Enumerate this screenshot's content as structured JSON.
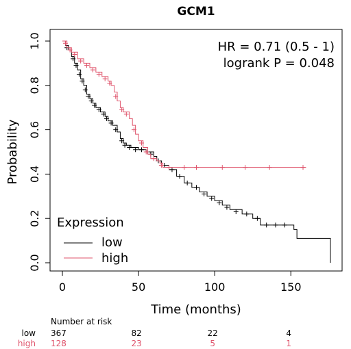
{
  "chart_data": {
    "type": "line",
    "title": "GCM1",
    "xlabel": "Time (months)",
    "ylabel": "Probability",
    "xlim": [
      0,
      180
    ],
    "ylim": [
      0,
      1
    ],
    "x_ticks": [
      "0",
      "50",
      "100",
      "150"
    ],
    "y_ticks": [
      "0.0",
      "0.2",
      "0.4",
      "0.6",
      "0.8",
      "1.0"
    ],
    "annotations": [
      "HR = 0.71 (0.5 - 1)",
      "logrank P = 0.048"
    ],
    "legend": {
      "title": "Expression",
      "position": "bottom-left"
    },
    "grid": false,
    "series": [
      {
        "name": "low",
        "color": "#000000",
        "steps": [
          [
            0,
            1.0
          ],
          [
            2,
            0.98
          ],
          [
            4,
            0.96
          ],
          [
            6,
            0.93
          ],
          [
            8,
            0.9
          ],
          [
            10,
            0.87
          ],
          [
            12,
            0.83
          ],
          [
            14,
            0.8
          ],
          [
            16,
            0.76
          ],
          [
            18,
            0.74
          ],
          [
            20,
            0.72
          ],
          [
            22,
            0.7
          ],
          [
            25,
            0.68
          ],
          [
            28,
            0.66
          ],
          [
            30,
            0.64
          ],
          [
            33,
            0.62
          ],
          [
            36,
            0.59
          ],
          [
            38,
            0.56
          ],
          [
            40,
            0.54
          ],
          [
            42,
            0.53
          ],
          [
            45,
            0.52
          ],
          [
            50,
            0.51
          ],
          [
            55,
            0.5
          ],
          [
            60,
            0.48
          ],
          [
            62,
            0.46
          ],
          [
            65,
            0.44
          ],
          [
            70,
            0.42
          ],
          [
            75,
            0.39
          ],
          [
            80,
            0.36
          ],
          [
            85,
            0.34
          ],
          [
            90,
            0.32
          ],
          [
            95,
            0.3
          ],
          [
            100,
            0.28
          ],
          [
            105,
            0.26
          ],
          [
            110,
            0.24
          ],
          [
            118,
            0.22
          ],
          [
            125,
            0.2
          ],
          [
            130,
            0.17
          ],
          [
            152,
            0.15
          ],
          [
            154,
            0.11
          ],
          [
            175,
            0.11
          ],
          [
            176,
            0.0
          ]
        ],
        "censors": [
          [
            3,
            0.97
          ],
          [
            7,
            0.92
          ],
          [
            9,
            0.89
          ],
          [
            11,
            0.85
          ],
          [
            13,
            0.82
          ],
          [
            15,
            0.78
          ],
          [
            17,
            0.75
          ],
          [
            19,
            0.73
          ],
          [
            21,
            0.71
          ],
          [
            24,
            0.69
          ],
          [
            27,
            0.67
          ],
          [
            29,
            0.65
          ],
          [
            32,
            0.63
          ],
          [
            35,
            0.6
          ],
          [
            39,
            0.55
          ],
          [
            41,
            0.53
          ],
          [
            44,
            0.52
          ],
          [
            48,
            0.51
          ],
          [
            52,
            0.51
          ],
          [
            56,
            0.5
          ],
          [
            58,
            0.49
          ],
          [
            63,
            0.46
          ],
          [
            67,
            0.44
          ],
          [
            72,
            0.42
          ],
          [
            77,
            0.39
          ],
          [
            82,
            0.36
          ],
          [
            88,
            0.34
          ],
          [
            93,
            0.31
          ],
          [
            98,
            0.29
          ],
          [
            103,
            0.27
          ],
          [
            108,
            0.25
          ],
          [
            114,
            0.23
          ],
          [
            121,
            0.22
          ],
          [
            128,
            0.2
          ],
          [
            134,
            0.17
          ],
          [
            140,
            0.17
          ],
          [
            146,
            0.17
          ]
        ]
      },
      {
        "name": "high",
        "color": "#df536b",
        "steps": [
          [
            0,
            1.0
          ],
          [
            3,
            0.97
          ],
          [
            6,
            0.95
          ],
          [
            10,
            0.92
          ],
          [
            14,
            0.9
          ],
          [
            18,
            0.88
          ],
          [
            22,
            0.86
          ],
          [
            26,
            0.84
          ],
          [
            30,
            0.82
          ],
          [
            32,
            0.8
          ],
          [
            34,
            0.77
          ],
          [
            36,
            0.73
          ],
          [
            38,
            0.7
          ],
          [
            40,
            0.68
          ],
          [
            44,
            0.65
          ],
          [
            46,
            0.62
          ],
          [
            48,
            0.58
          ],
          [
            50,
            0.55
          ],
          [
            53,
            0.52
          ],
          [
            56,
            0.49
          ],
          [
            58,
            0.47
          ],
          [
            62,
            0.46
          ],
          [
            64,
            0.45
          ],
          [
            66,
            0.43
          ],
          [
            160,
            0.43
          ]
        ],
        "censors": [
          [
            2,
            0.99
          ],
          [
            5,
            0.96
          ],
          [
            8,
            0.94
          ],
          [
            12,
            0.91
          ],
          [
            16,
            0.89
          ],
          [
            20,
            0.87
          ],
          [
            24,
            0.85
          ],
          [
            28,
            0.83
          ],
          [
            31,
            0.81
          ],
          [
            35,
            0.75
          ],
          [
            39,
            0.69
          ],
          [
            42,
            0.67
          ],
          [
            47,
            0.6
          ],
          [
            52,
            0.54
          ],
          [
            55,
            0.5
          ],
          [
            60,
            0.47
          ],
          [
            65,
            0.44
          ],
          [
            70,
            0.43
          ],
          [
            80,
            0.43
          ],
          [
            88,
            0.43
          ],
          [
            105,
            0.43
          ],
          [
            120,
            0.43
          ],
          [
            136,
            0.43
          ],
          [
            158,
            0.43
          ]
        ]
      }
    ],
    "risk_table": {
      "title": "Number at risk",
      "times": [
        0,
        50,
        100,
        150
      ],
      "rows": [
        {
          "label": "low",
          "color": "#000000",
          "values": [
            "367",
            "82",
            "22",
            "4"
          ]
        },
        {
          "label": "high",
          "color": "#df536b",
          "values": [
            "128",
            "23",
            "5",
            "1"
          ]
        }
      ]
    }
  }
}
